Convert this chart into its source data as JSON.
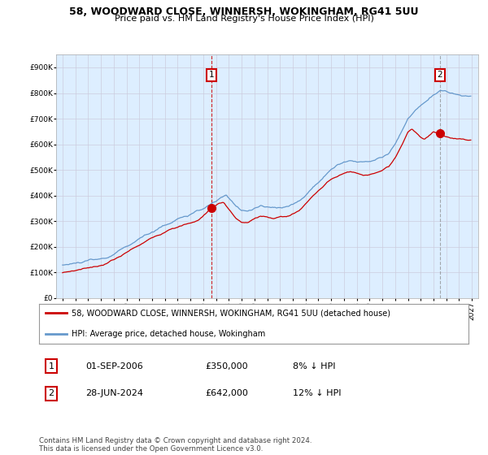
{
  "title1": "58, WOODWARD CLOSE, WINNERSH, WOKINGHAM, RG41 5UU",
  "title2": "Price paid vs. HM Land Registry's House Price Index (HPI)",
  "legend_line1": "58, WOODWARD CLOSE, WINNERSH, WOKINGHAM, RG41 5UU (detached house)",
  "legend_line2": "HPI: Average price, detached house, Wokingham",
  "marker1_label": "1",
  "marker1_date": "01-SEP-2006",
  "marker1_price": "£350,000",
  "marker1_hpi": "8% ↓ HPI",
  "marker2_label": "2",
  "marker2_date": "28-JUN-2024",
  "marker2_price": "£642,000",
  "marker2_hpi": "12% ↓ HPI",
  "footer": "Contains HM Land Registry data © Crown copyright and database right 2024.\nThis data is licensed under the Open Government Licence v3.0.",
  "red_color": "#cc0000",
  "blue_color": "#6699cc",
  "bg_color": "#ddeeff",
  "grid_color": "#ccccdd",
  "ylim": [
    0,
    950000
  ],
  "yticks": [
    0,
    100000,
    200000,
    300000,
    400000,
    500000,
    600000,
    700000,
    800000,
    900000
  ],
  "xlim_start": 1994.5,
  "xlim_end": 2027.5,
  "marker1_x": 2006.67,
  "marker1_y": 350000,
  "marker2_x": 2024.5,
  "marker2_y": 642000,
  "vline1_x": 2006.67,
  "vline2_x": 2024.5,
  "hpi_anchors": [
    [
      1995.0,
      128000
    ],
    [
      1996.0,
      135000
    ],
    [
      1997.0,
      145000
    ],
    [
      1998.0,
      152000
    ],
    [
      1998.5,
      158000
    ],
    [
      1999.0,
      170000
    ],
    [
      1999.5,
      185000
    ],
    [
      2000.0,
      200000
    ],
    [
      2000.5,
      215000
    ],
    [
      2001.0,
      230000
    ],
    [
      2001.5,
      245000
    ],
    [
      2002.0,
      258000
    ],
    [
      2002.5,
      272000
    ],
    [
      2003.0,
      285000
    ],
    [
      2003.5,
      296000
    ],
    [
      2004.0,
      308000
    ],
    [
      2004.5,
      318000
    ],
    [
      2005.0,
      325000
    ],
    [
      2005.5,
      335000
    ],
    [
      2006.0,
      348000
    ],
    [
      2006.5,
      362000
    ],
    [
      2007.0,
      378000
    ],
    [
      2007.5,
      392000
    ],
    [
      2007.8,
      400000
    ],
    [
      2008.0,
      390000
    ],
    [
      2008.5,
      365000
    ],
    [
      2009.0,
      345000
    ],
    [
      2009.5,
      338000
    ],
    [
      2010.0,
      348000
    ],
    [
      2010.5,
      358000
    ],
    [
      2011.0,
      355000
    ],
    [
      2011.5,
      352000
    ],
    [
      2012.0,
      355000
    ],
    [
      2012.5,
      358000
    ],
    [
      2013.0,
      365000
    ],
    [
      2013.5,
      378000
    ],
    [
      2014.0,
      400000
    ],
    [
      2014.5,
      428000
    ],
    [
      2015.0,
      455000
    ],
    [
      2015.5,
      478000
    ],
    [
      2016.0,
      500000
    ],
    [
      2016.5,
      518000
    ],
    [
      2017.0,
      530000
    ],
    [
      2017.5,
      538000
    ],
    [
      2018.0,
      532000
    ],
    [
      2018.5,
      528000
    ],
    [
      2019.0,
      532000
    ],
    [
      2019.5,
      540000
    ],
    [
      2020.0,
      548000
    ],
    [
      2020.5,
      562000
    ],
    [
      2021.0,
      598000
    ],
    [
      2021.5,
      648000
    ],
    [
      2022.0,
      700000
    ],
    [
      2022.5,
      730000
    ],
    [
      2023.0,
      748000
    ],
    [
      2023.5,
      768000
    ],
    [
      2024.0,
      792000
    ],
    [
      2024.5,
      810000
    ],
    [
      2025.0,
      805000
    ],
    [
      2025.5,
      798000
    ],
    [
      2026.0,
      792000
    ],
    [
      2027.0,
      788000
    ]
  ],
  "red_anchors": [
    [
      1995.0,
      100000
    ],
    [
      1996.0,
      108000
    ],
    [
      1997.0,
      118000
    ],
    [
      1998.0,
      128000
    ],
    [
      1998.5,
      135000
    ],
    [
      1999.0,
      148000
    ],
    [
      1999.5,
      162000
    ],
    [
      2000.0,
      178000
    ],
    [
      2000.5,
      192000
    ],
    [
      2001.0,
      208000
    ],
    [
      2001.5,
      220000
    ],
    [
      2002.0,
      234000
    ],
    [
      2002.5,
      248000
    ],
    [
      2003.0,
      260000
    ],
    [
      2003.5,
      270000
    ],
    [
      2004.0,
      278000
    ],
    [
      2004.5,
      285000
    ],
    [
      2005.0,
      292000
    ],
    [
      2005.5,
      300000
    ],
    [
      2006.0,
      320000
    ],
    [
      2006.67,
      350000
    ],
    [
      2007.2,
      368000
    ],
    [
      2007.6,
      372000
    ],
    [
      2008.0,
      345000
    ],
    [
      2008.5,
      312000
    ],
    [
      2009.0,
      295000
    ],
    [
      2009.5,
      292000
    ],
    [
      2010.0,
      308000
    ],
    [
      2010.5,
      320000
    ],
    [
      2011.0,
      318000
    ],
    [
      2011.5,
      312000
    ],
    [
      2012.0,
      315000
    ],
    [
      2012.5,
      318000
    ],
    [
      2013.0,
      328000
    ],
    [
      2013.5,
      342000
    ],
    [
      2014.0,
      368000
    ],
    [
      2014.5,
      395000
    ],
    [
      2015.0,
      420000
    ],
    [
      2015.5,
      440000
    ],
    [
      2016.0,
      462000
    ],
    [
      2016.5,
      478000
    ],
    [
      2017.0,
      488000
    ],
    [
      2017.5,
      492000
    ],
    [
      2018.0,
      488000
    ],
    [
      2018.5,
      480000
    ],
    [
      2019.0,
      482000
    ],
    [
      2019.5,
      488000
    ],
    [
      2020.0,
      495000
    ],
    [
      2020.5,
      510000
    ],
    [
      2021.0,
      545000
    ],
    [
      2021.5,
      590000
    ],
    [
      2022.0,
      645000
    ],
    [
      2022.3,
      660000
    ],
    [
      2022.7,
      645000
    ],
    [
      2023.0,
      628000
    ],
    [
      2023.3,
      618000
    ],
    [
      2023.7,
      635000
    ],
    [
      2024.0,
      648000
    ],
    [
      2024.5,
      642000
    ],
    [
      2025.0,
      630000
    ],
    [
      2025.5,
      624000
    ],
    [
      2026.0,
      620000
    ],
    [
      2027.0,
      618000
    ]
  ]
}
